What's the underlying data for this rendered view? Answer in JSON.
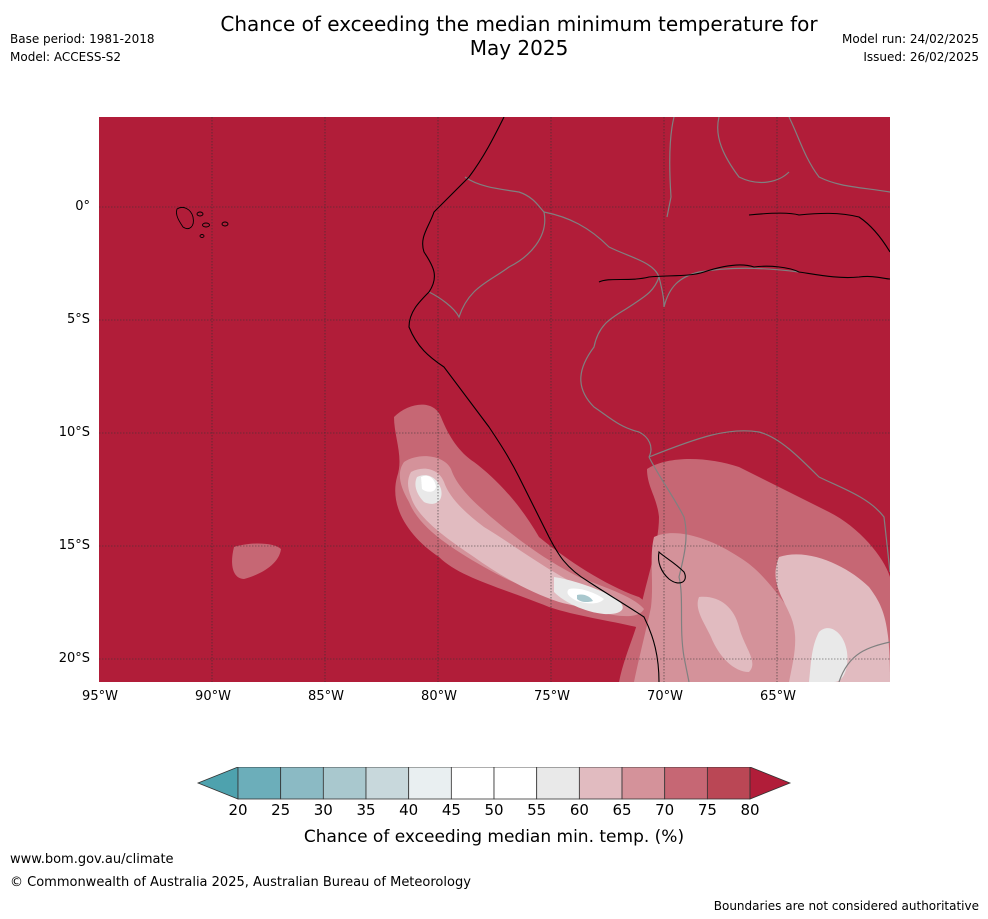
{
  "header": {
    "title_line1": "Chance of exceeding the median minimum temperature for",
    "title_line2": "May 2025",
    "base_period": "Base period: 1981-2018",
    "model": "Model: ACCESS-S2",
    "model_run": "Model run: 24/02/2025",
    "issued": "Issued: 26/02/2025"
  },
  "map": {
    "extent": {
      "lon": [
        -95,
        -60
      ],
      "lat": [
        -21,
        4
      ]
    },
    "background_fill": "#b11d39",
    "lat_ticks": [
      {
        "value": 0,
        "label": "0°"
      },
      {
        "value": -5,
        "label": "5°S"
      },
      {
        "value": -10,
        "label": "10°S"
      },
      {
        "value": -15,
        "label": "15°S"
      },
      {
        "value": -20,
        "label": "20°S"
      }
    ],
    "lon_ticks": [
      {
        "value": -95,
        "label": "95°W"
      },
      {
        "value": -90,
        "label": "90°W"
      },
      {
        "value": -85,
        "label": "85°W"
      },
      {
        "value": -80,
        "label": "80°W"
      },
      {
        "value": -75,
        "label": "75°W"
      },
      {
        "value": -70,
        "label": "70°W"
      },
      {
        "value": -65,
        "label": "65°W"
      }
    ],
    "gridlines": true
  },
  "colorbar": {
    "title": "Chance of exceeding median min. temp. (%)",
    "ticks": [
      "20",
      "25",
      "30",
      "35",
      "40",
      "45",
      "50",
      "55",
      "60",
      "65",
      "70",
      "75",
      "80"
    ],
    "low_extend_color": "#4ea2ae",
    "high_extend_color": "#b11d39",
    "colors": [
      "#6caeba",
      "#8bbac4",
      "#a9c8ce",
      "#c8d8dc",
      "#e9eff1",
      "#ffffff",
      "#ffffff",
      "#e9e9e9",
      "#e1bbc0",
      "#d4929a",
      "#c66774",
      "#ba4755"
    ]
  },
  "footer": {
    "website": "www.bom.gov.au/climate",
    "copyright": "© Commonwealth of Australia 2025, Australian Bureau of Meteorology",
    "disclaimer": "Boundaries are not considered authoritative"
  }
}
